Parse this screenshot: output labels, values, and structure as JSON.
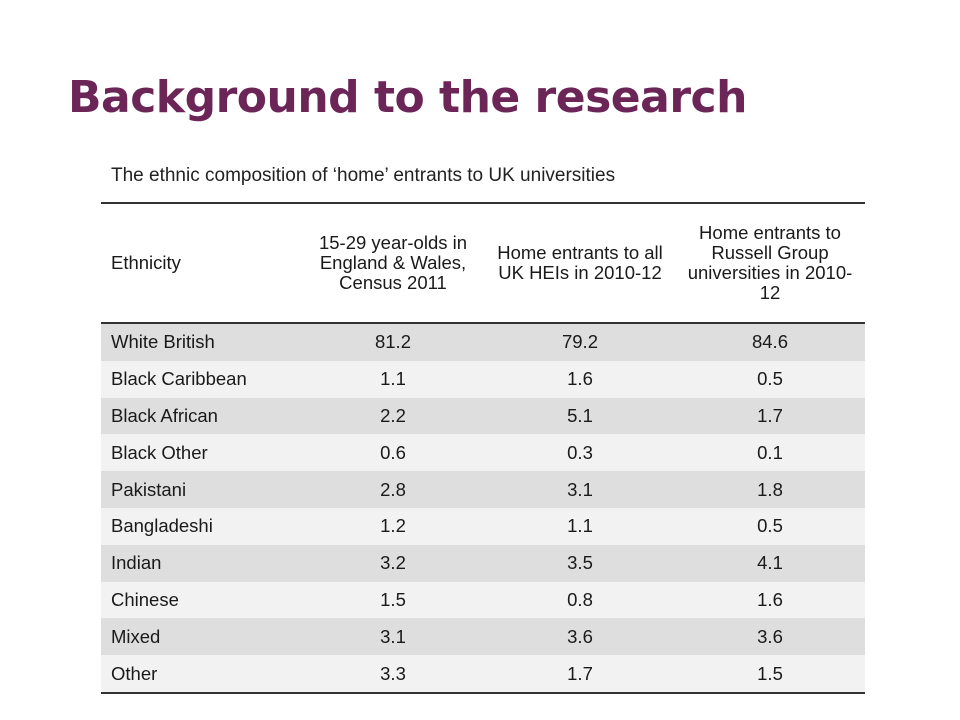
{
  "slide": {
    "title": "Background to the research"
  },
  "table": {
    "caption": "The ethnic composition of ‘home’ entrants to UK universities",
    "headers": [
      "Ethnicity",
      "15-29 year-olds in England & Wales, Census 2011",
      "Home entrants to all UK HEIs in 2010-12",
      "Home entrants to Russell Group universities in 2010-12"
    ],
    "rows": [
      [
        "White British",
        "81.2",
        "79.2",
        "84.6"
      ],
      [
        "Black Caribbean",
        "1.1",
        "1.6",
        "0.5"
      ],
      [
        "Black African",
        "2.2",
        "5.1",
        "1.7"
      ],
      [
        "Black Other",
        "0.6",
        "0.3",
        "0.1"
      ],
      [
        "Pakistani",
        "2.8",
        "3.1",
        "1.8"
      ],
      [
        "Bangladeshi",
        "1.2",
        "1.1",
        "0.5"
      ],
      [
        "Indian",
        "3.2",
        "3.5",
        "4.1"
      ],
      [
        "Chinese",
        "1.5",
        "0.8",
        "1.6"
      ],
      [
        "Mixed",
        "3.1",
        "3.6",
        "3.6"
      ],
      [
        "Other",
        "3.3",
        "1.7",
        "1.5"
      ]
    ]
  },
  "colors": {
    "title": "#6b2557",
    "row_dark": "#dedede",
    "row_light": "#f2f2f2",
    "rule": "#333333"
  }
}
